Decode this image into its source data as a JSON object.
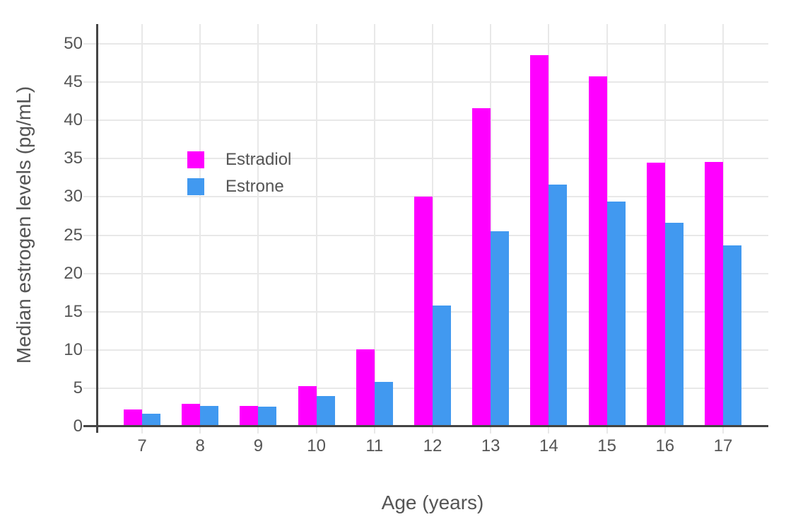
{
  "chart_data": {
    "type": "bar",
    "title": "",
    "xlabel": "Age (years)",
    "ylabel": "Median estrogen levels (pg/mL)",
    "categories": [
      7,
      8,
      9,
      10,
      11,
      12,
      13,
      14,
      15,
      16,
      17
    ],
    "series": [
      {
        "name": "Estradiol",
        "color": "#FF00FF",
        "values": [
          2.2,
          3.0,
          2.65,
          5.3,
          10.1,
          30.0,
          41.6,
          48.5,
          45.8,
          34.5,
          34.6
        ]
      },
      {
        "name": "Estrone",
        "color": "#4199F0",
        "values": [
          1.7,
          2.7,
          2.6,
          4.0,
          5.8,
          15.8,
          25.5,
          31.6,
          29.4,
          26.6,
          23.7
        ]
      }
    ],
    "ylim": [
      0,
      52.6
    ],
    "yticks": [
      0,
      5,
      10,
      15,
      20,
      25,
      30,
      35,
      40,
      45,
      50
    ],
    "grid": true,
    "legend_position": "inside-upper-left"
  },
  "style": {
    "grid_color": "#E8E8E8",
    "axis_color": "#444444",
    "text_color": "#555555",
    "background_color": "#FFFFFF"
  }
}
